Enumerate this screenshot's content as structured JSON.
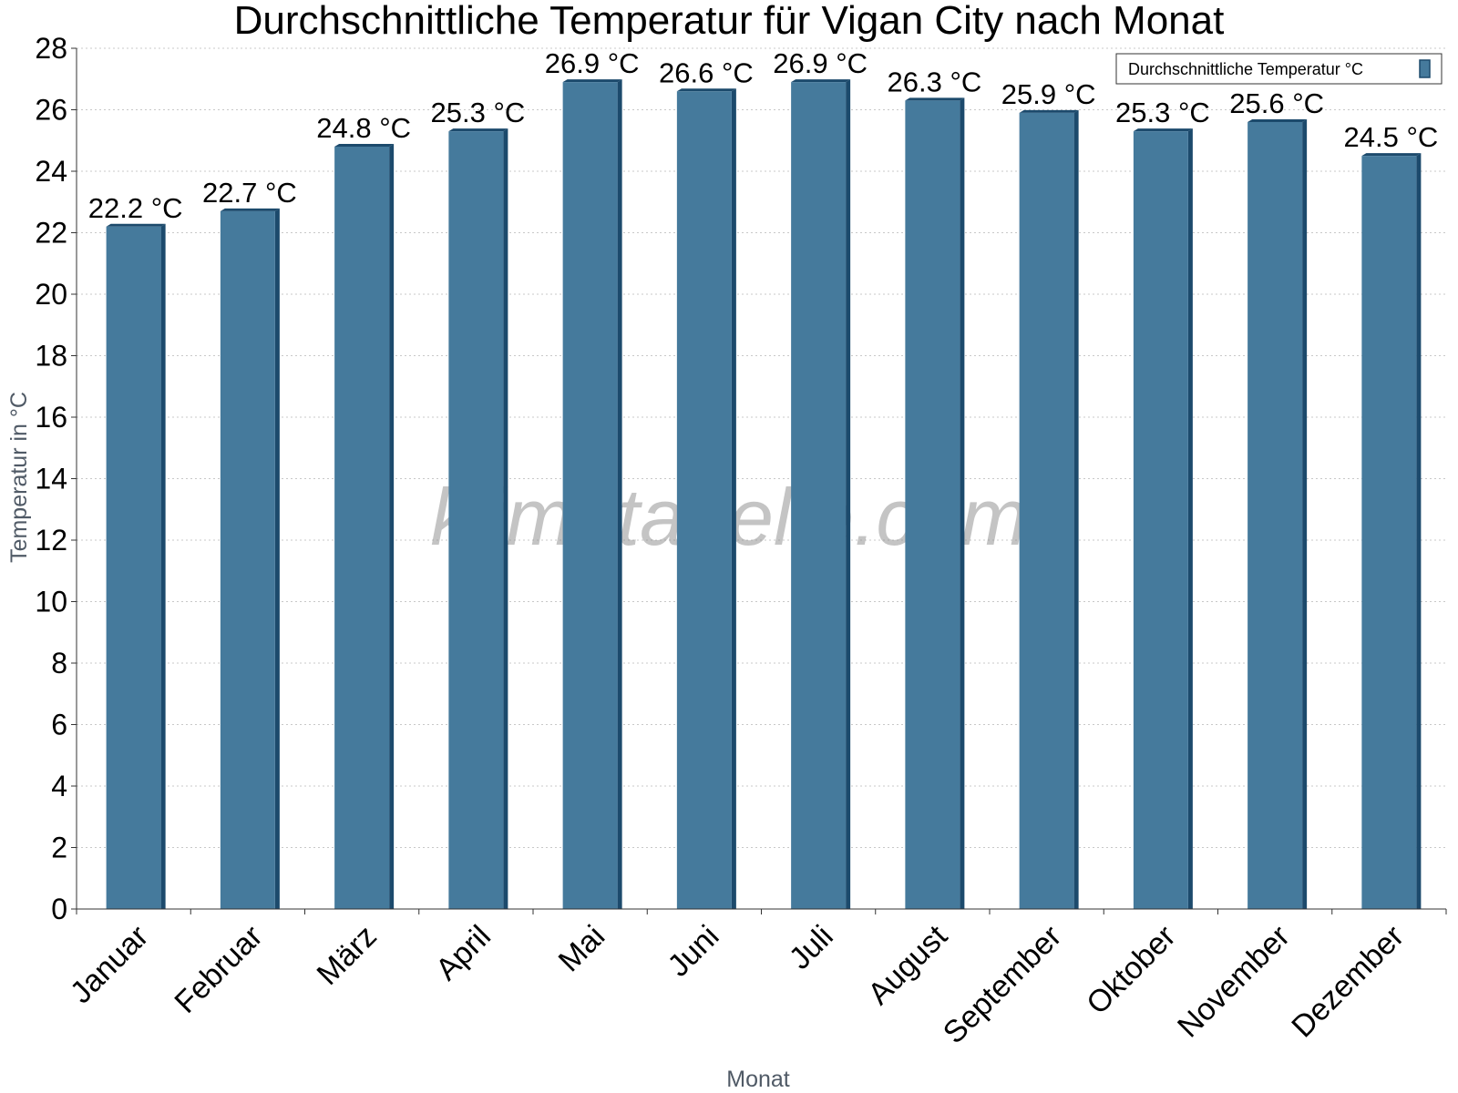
{
  "chart_data": {
    "type": "bar",
    "title": "Durchschnittliche Temperatur für Vigan City nach Monat",
    "xlabel": "Monat",
    "ylabel": "Temperatur in °C",
    "ylim": [
      0,
      28
    ],
    "ytick_step": 2,
    "grid": true,
    "legend_position": "top-right",
    "unit_suffix": " °C",
    "categories": [
      "Januar",
      "Februar",
      "März",
      "April",
      "Mai",
      "Juni",
      "Juli",
      "August",
      "September",
      "Oktober",
      "November",
      "Dezember"
    ],
    "series": [
      {
        "name": "Durchschnittliche Temperatur °C",
        "color": "#457a9c",
        "edge_color": "#1c4a6c",
        "values": [
          22.2,
          22.7,
          24.8,
          25.3,
          26.9,
          26.6,
          26.9,
          26.3,
          25.9,
          25.3,
          25.6,
          24.5
        ]
      }
    ],
    "watermark": "klimatabelle.com"
  }
}
